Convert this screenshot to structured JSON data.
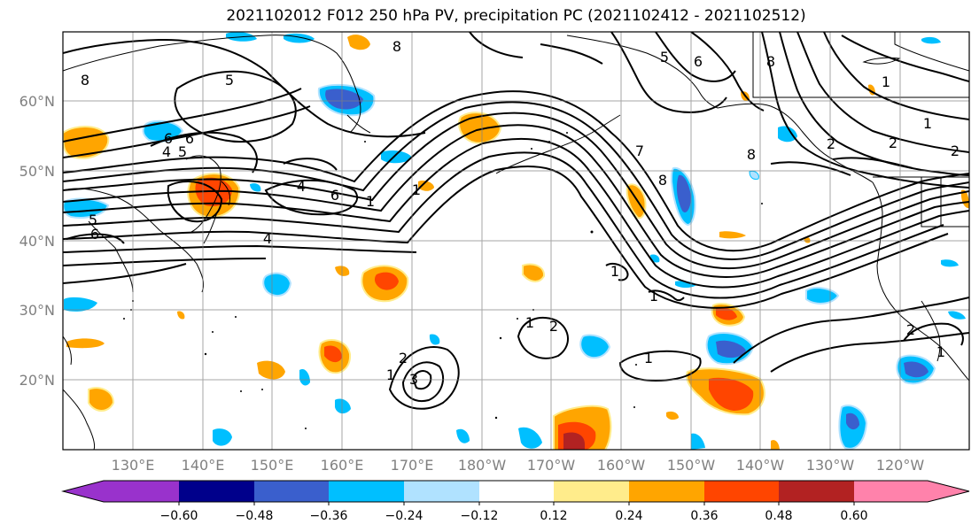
{
  "title": "2021102012 F012 250 hPa PV, precipitation PC (2021102412 - 2021102512)",
  "map": {
    "lat_labels": [
      "60°N",
      "50°N",
      "40°N",
      "30°N",
      "20°N"
    ],
    "lon_labels": [
      "130°E",
      "140°E",
      "150°E",
      "160°E",
      "170°E",
      "180°W",
      "170°W",
      "160°W",
      "150°W",
      "140°W",
      "130°W",
      "120°W"
    ],
    "contour_labels": [
      "8",
      "5",
      "6",
      "4",
      "5",
      "6",
      "5",
      "6",
      "4",
      "6",
      "1",
      "1",
      "7",
      "8",
      "8",
      "6",
      "8",
      "5",
      "1",
      "2",
      "2",
      "1",
      "2",
      "1",
      "2",
      "1",
      "1",
      "1",
      "2",
      "3",
      "1",
      "2",
      "1",
      "4",
      "8"
    ]
  },
  "colorbar": {
    "ticks": [
      "−0.60",
      "−0.48",
      "−0.36",
      "−0.24",
      "−0.12",
      "0.12",
      "0.24",
      "0.36",
      "0.48",
      "0.60"
    ],
    "colors": [
      "#9932cc",
      "#00008b",
      "#3a5fcd",
      "#00bfff",
      "#b0e2ff",
      "#ffffff",
      "#ffec8b",
      "#ffa500",
      "#ff4500",
      "#b22222",
      "#ff82ab"
    ]
  }
}
